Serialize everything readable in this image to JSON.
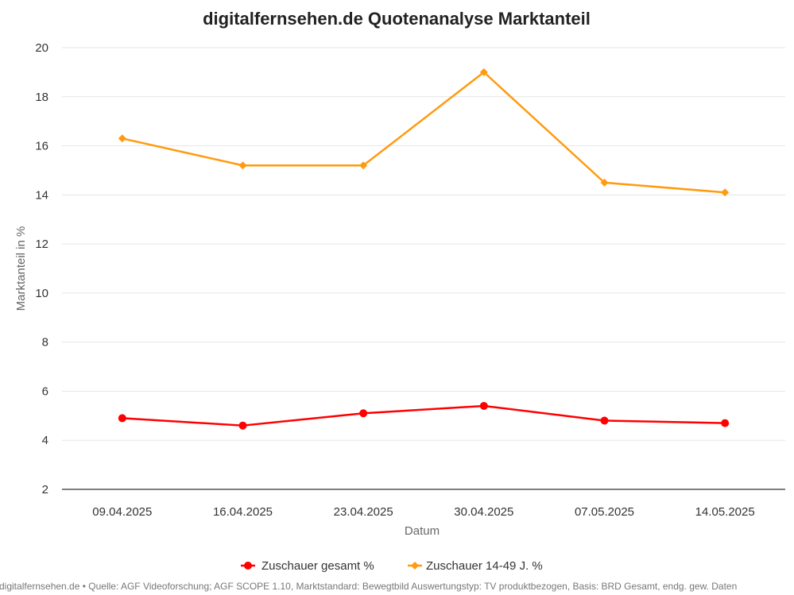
{
  "chart_data": {
    "type": "line",
    "title": "digitalfernsehen.de Quotenanalyse Marktanteil",
    "xlabel": "Datum",
    "ylabel": "Marktanteil in %",
    "ylim": [
      2,
      20
    ],
    "yticks": [
      "2",
      "4",
      "6",
      "8",
      "10",
      "12",
      "14",
      "16",
      "18",
      "20"
    ],
    "categories": [
      "09.04.2025",
      "16.04.2025",
      "23.04.2025",
      "30.04.2025",
      "07.05.2025",
      "14.05.2025"
    ],
    "series": [
      {
        "name": "Zuschauer gesamt %",
        "color": "#ff0000",
        "marker": "circle",
        "values": [
          4.9,
          4.6,
          5.1,
          5.4,
          4.8,
          4.7
        ]
      },
      {
        "name": "Zuschauer 14-49 J. %",
        "color": "#ff9b0f",
        "marker": "diamond",
        "values": [
          16.3,
          15.2,
          15.2,
          19.0,
          14.5,
          14.1
        ]
      }
    ],
    "grid": true,
    "legend_position": "bottom"
  },
  "footer": "digitalfernsehen.de • Quelle: AGF Videoforschung; AGF SCOPE 1.10, Marktstandard: Bewegtbild Auswertungstyp: TV produktbezogen, Basis: BRD Gesamt, endg. gew. Daten"
}
